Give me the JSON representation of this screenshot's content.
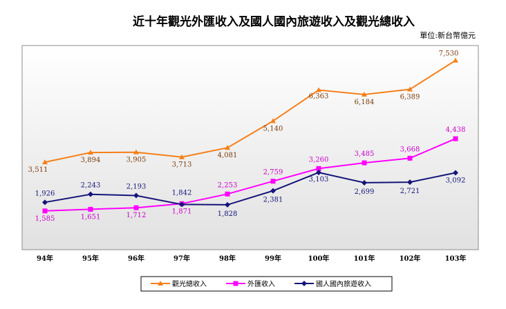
{
  "chart_data": {
    "type": "line",
    "title": "近十年觀光外匯收入及國人國內旅遊收入及觀光總收入",
    "unit_label": "單位:新台幣億元",
    "categories": [
      "94年",
      "95年",
      "96年",
      "97年",
      "98年",
      "99年",
      "100年",
      "101年",
      "102年",
      "103年"
    ],
    "ylim": [
      0,
      8500
    ],
    "grid": false,
    "legend_position": "bottom",
    "series": [
      {
        "name": "觀光總收入",
        "color": "#f57f17",
        "marker": "triangle",
        "label_color": "#7a3b0b",
        "values": [
          3511,
          3894,
          3905,
          3713,
          4081,
          5140,
          6363,
          6184,
          6389,
          7530
        ],
        "labels": [
          "3,511",
          "3,894",
          "3,905",
          "3,713",
          "4,081",
          "5,140",
          "6,363",
          "6,184",
          "6,389",
          "7,530"
        ]
      },
      {
        "name": "外匯收入",
        "color": "#ff00ff",
        "marker": "square",
        "label_color": "#cc00cc",
        "values": [
          1585,
          1651,
          1712,
          1871,
          2253,
          2759,
          3260,
          3485,
          3668,
          4438
        ],
        "labels": [
          "1,585",
          "1,651",
          "1,712",
          "1,871",
          "2,253",
          "2,759",
          "3,260",
          "3,485",
          "3,668",
          "4,438"
        ]
      },
      {
        "name": "國人國內旅遊收入",
        "color": "#14147a",
        "marker": "diamond",
        "label_color": "#14147a",
        "values": [
          1926,
          2243,
          2193,
          1842,
          1828,
          2381,
          3103,
          2699,
          2721,
          3092
        ],
        "labels": [
          "1,926",
          "2,243",
          "2,193",
          "1,842",
          "1,828",
          "2,381",
          "3,103",
          "2,699",
          "2,721",
          "3,092"
        ]
      }
    ]
  }
}
